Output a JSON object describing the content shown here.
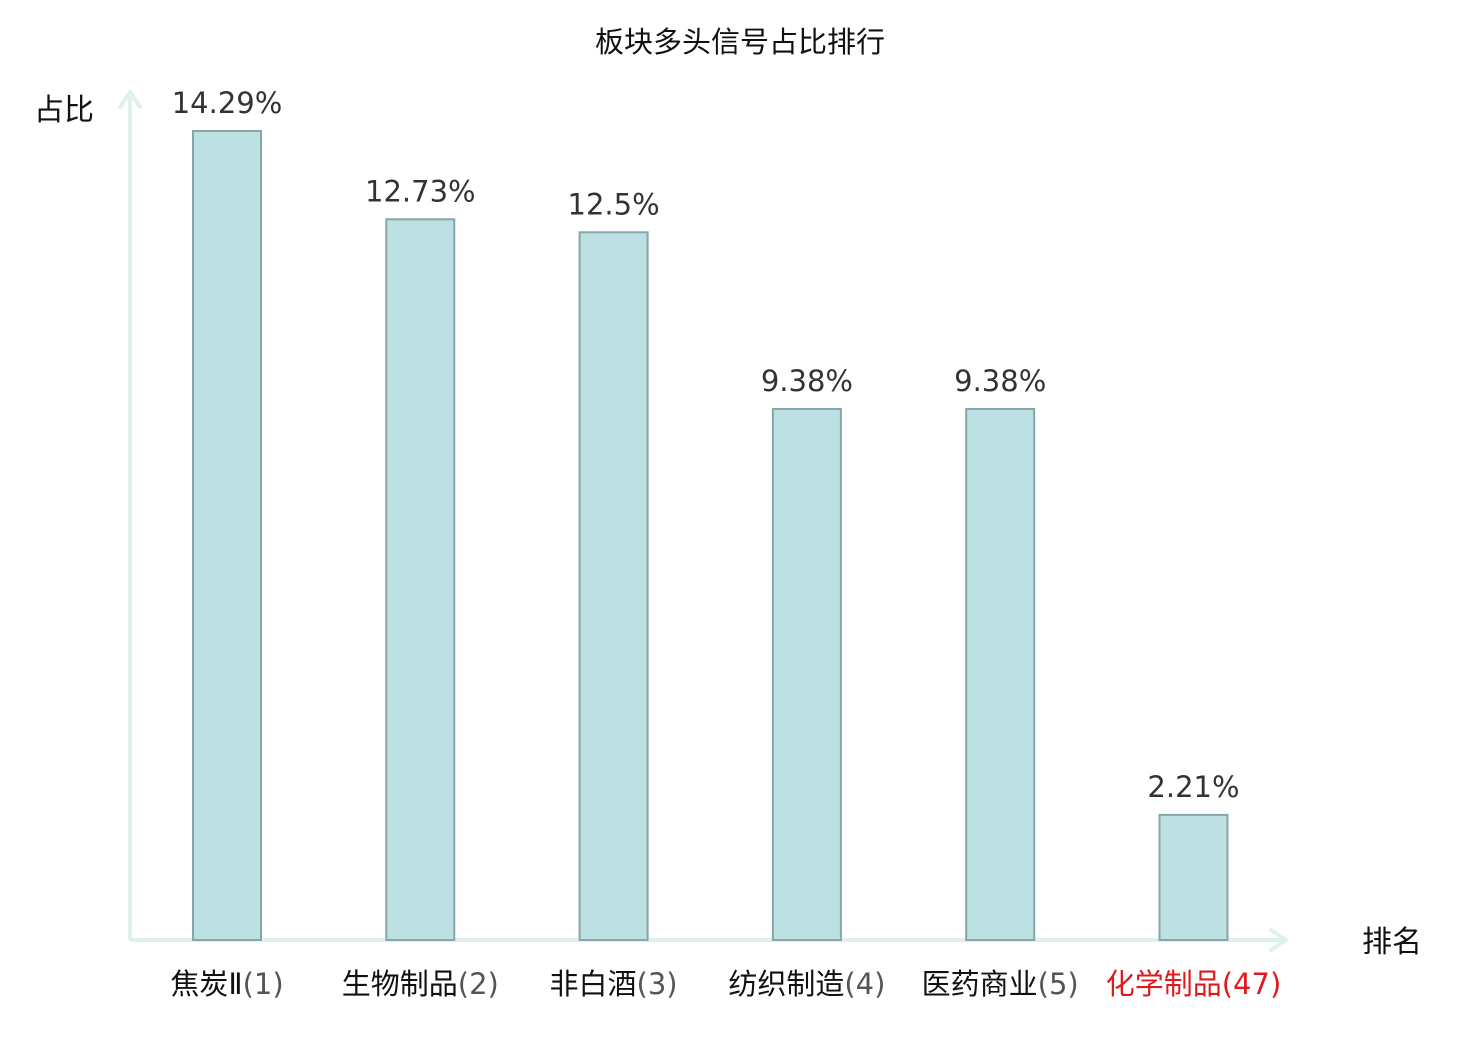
{
  "chart_data": {
    "type": "bar",
    "title": "板块多头信号占比排行",
    "ylabel": "占比",
    "xlabel": "排名",
    "categories": [
      {
        "name": "焦炭Ⅱ",
        "rank": "(1)"
      },
      {
        "name": "生物制品",
        "rank": "(2)"
      },
      {
        "name": "非白酒",
        "rank": "(3)"
      },
      {
        "name": "纺织制造",
        "rank": "(4)"
      },
      {
        "name": "医药商业",
        "rank": "(5)"
      },
      {
        "name": "化学制品",
        "rank": "(47)",
        "highlight": true
      }
    ],
    "values": [
      14.29,
      12.73,
      12.5,
      9.38,
      9.38,
      2.21
    ],
    "value_labels": [
      "14.29%",
      "12.73%",
      "12.5%",
      "9.38%",
      "9.38%",
      "2.21%"
    ],
    "ylim": [
      0,
      14.29
    ],
    "grid": false,
    "legend": false
  },
  "colors": {
    "bar_fill": "#bde0e3",
    "bar_stroke": "#85a6aa",
    "axis": "#dff1ee",
    "text": "#111111",
    "value_text": "#333333",
    "rank_text": "#555555",
    "highlight": "#e0191d"
  }
}
